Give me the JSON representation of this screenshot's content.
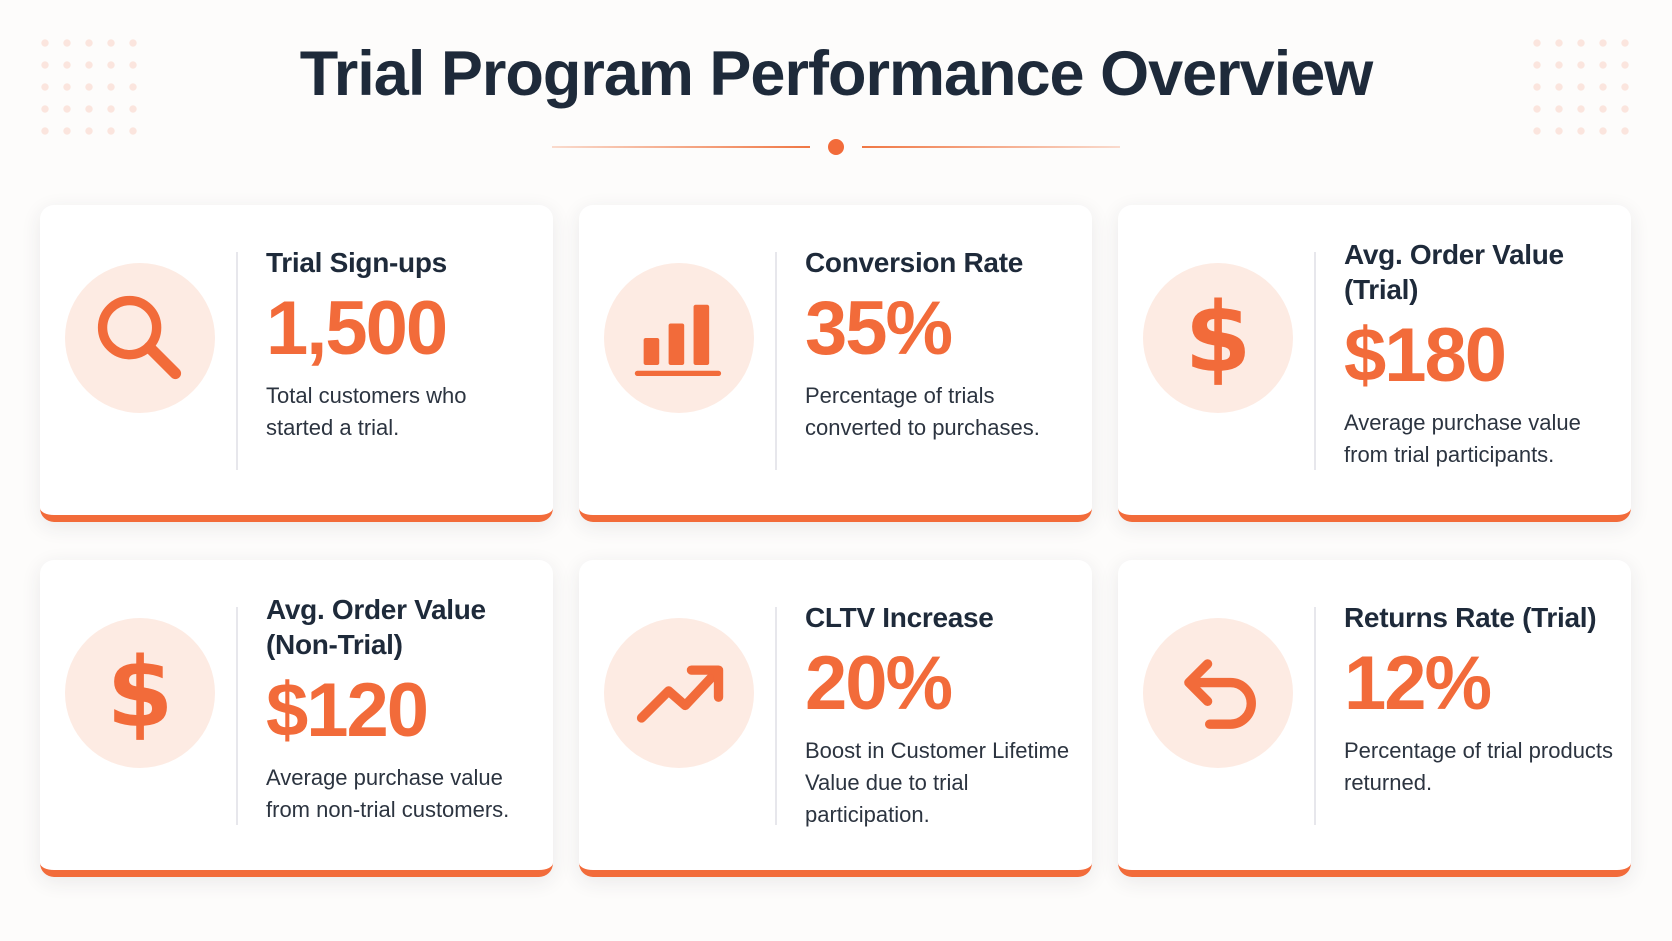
{
  "page": {
    "title": "Trial Program Performance Overview"
  },
  "colors": {
    "accent": "#f26b3a",
    "icon_background": "#fdebe3",
    "heading": "#1e2a3a",
    "text": "#2c3440",
    "card_background": "#ffffff"
  },
  "cards": [
    {
      "title": "Trial Sign-ups",
      "value": "1,500",
      "description": "Total customers who started a trial.",
      "icon": "search-icon"
    },
    {
      "title": "Conversion Rate",
      "value": "35%",
      "description": "Percentage of trials converted to purchases.",
      "icon": "bar-chart-icon"
    },
    {
      "title": "Avg. Order Value (Trial)",
      "value": "$180",
      "description": "Average purchase value from trial participants.",
      "icon": "dollar-icon"
    },
    {
      "title": "Avg. Order Value (Non-Trial)",
      "value": "$120",
      "description": "Average purchase value from non-trial customers.",
      "icon": "dollar-icon"
    },
    {
      "title": "CLTV Increase",
      "value": "20%",
      "description": "Boost in Customer Lifetime Value due to trial participation.",
      "icon": "trending-up-icon"
    },
    {
      "title": "Returns Rate (Trial)",
      "value": "12%",
      "description": "Percentage of trial products returned.",
      "icon": "undo-icon"
    }
  ]
}
